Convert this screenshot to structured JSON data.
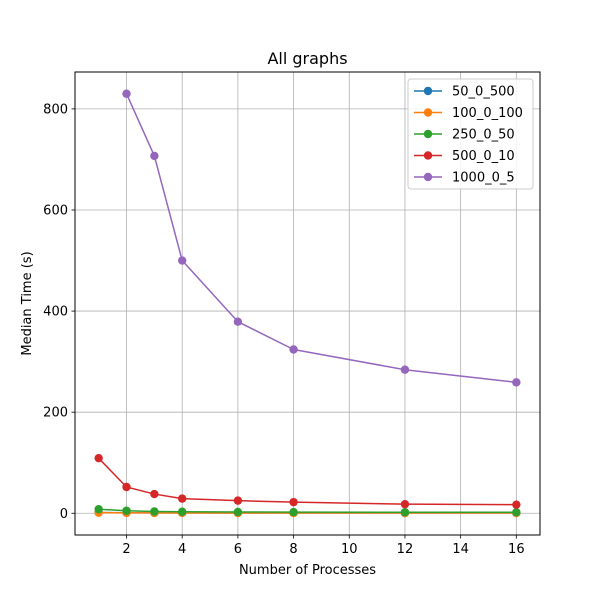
{
  "chart_data": {
    "type": "line",
    "title": "All graphs",
    "xlabel": "Number of Processes",
    "ylabel": "Median Time (s)",
    "xlim": [
      0.15,
      16.85
    ],
    "ylim": [
      -43,
      873
    ],
    "xticks": [
      2,
      4,
      6,
      8,
      10,
      12,
      14,
      16
    ],
    "yticks": [
      0,
      200,
      400,
      600,
      800
    ],
    "grid": true,
    "legend_position": "top-right",
    "series": [
      {
        "name": "50_0_500",
        "color": "#1f77b4",
        "x": [
          1,
          2,
          3,
          4,
          6,
          8,
          12,
          16
        ],
        "y": [
          1.5,
          1.0,
          0.8,
          0.7,
          0.6,
          0.6,
          0.5,
          0.5
        ]
      },
      {
        "name": "100_0_100",
        "color": "#ff7f0e",
        "x": [
          1,
          2,
          3,
          4,
          6,
          8,
          12,
          16
        ],
        "y": [
          1.2,
          0.8,
          0.7,
          0.6,
          0.5,
          0.5,
          0.4,
          0.4
        ]
      },
      {
        "name": "250_0_50",
        "color": "#2ca02c",
        "x": [
          1,
          2,
          3,
          4,
          6,
          8,
          12,
          16
        ],
        "y": [
          8,
          5,
          3.5,
          3,
          2.5,
          2.3,
          2,
          2
        ]
      },
      {
        "name": "500_0_10",
        "color": "#d62728",
        "x": [
          1,
          2,
          3,
          4,
          6,
          8,
          12,
          16
        ],
        "y": [
          109,
          52,
          38,
          29,
          25,
          22,
          18,
          17
        ]
      },
      {
        "name": "1000_0_5",
        "color": "#9467bd",
        "x": [
          2,
          3,
          4,
          6,
          8,
          12,
          16
        ],
        "y": [
          830,
          707,
          500,
          379,
          324,
          284,
          259
        ]
      }
    ]
  }
}
